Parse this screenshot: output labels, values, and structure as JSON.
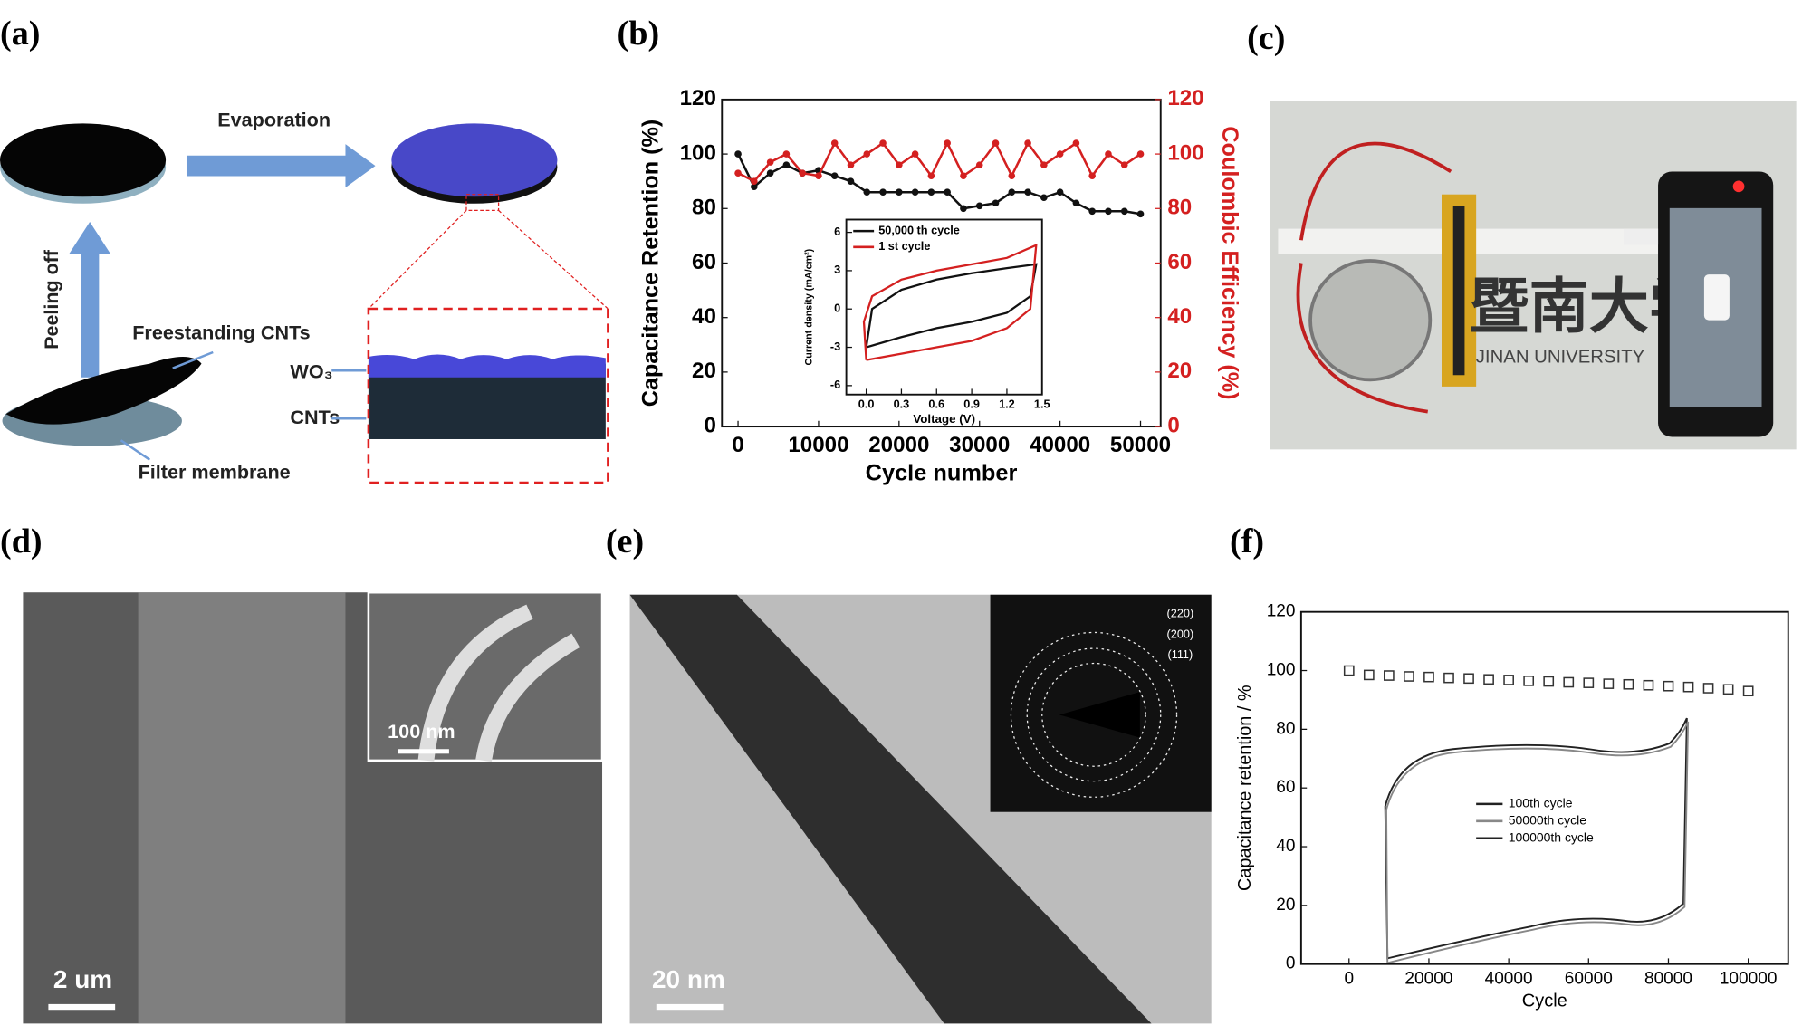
{
  "panels": {
    "labels": [
      "(a)",
      "(b)",
      "(c)",
      "(d)",
      "(e)",
      "(f)"
    ],
    "a": {
      "evaporation": "Evaporation",
      "peeling": "Peeling off",
      "freestanding": "Freestanding CNTs",
      "filter": "Filter membrane",
      "wo3": "WO₃",
      "cnts": "CNTs"
    },
    "c": {
      "chinese": "暨南大学",
      "university": "JINAN UNIVERSITY"
    },
    "d": {
      "inset_scale": "100 nm",
      "scale": "2 um"
    },
    "e": {
      "scale": "20 nm",
      "rings": [
        "(220)",
        "(200)",
        "(111)"
      ]
    },
    "f": {
      "legend": [
        "100th cycle",
        "50000th cycle",
        "100000th cycle"
      ]
    }
  },
  "chart_data": [
    {
      "type": "line",
      "xlabel": "Cycle number",
      "ylabel": "Capacitance Retention (%)",
      "y2label": "Coulombic Efficiency (%)",
      "x": [
        0,
        2000,
        4000,
        6000,
        8000,
        10000,
        12000,
        14000,
        16000,
        18000,
        20000,
        22000,
        24000,
        26000,
        28000,
        30000,
        32000,
        34000,
        36000,
        38000,
        40000,
        42000,
        44000,
        46000,
        48000,
        50000
      ],
      "series": [
        {
          "color": "#111111",
          "values": [
            100,
            88,
            93,
            96,
            93,
            94,
            92,
            90,
            86,
            86,
            86,
            86,
            86,
            86,
            80,
            81,
            82,
            86,
            86,
            84,
            86,
            82,
            79,
            79,
            79,
            78
          ]
        },
        {
          "color": "#d42020",
          "axis": "y2",
          "values": [
            93,
            90,
            97,
            100,
            93,
            92,
            104,
            96,
            100,
            104,
            96,
            100,
            92,
            104,
            92,
            96,
            104,
            92,
            104,
            96,
            100,
            104,
            92,
            100,
            96,
            100
          ]
        }
      ],
      "xlim": [
        -2000,
        52500
      ],
      "xticks": [
        0,
        10000,
        20000,
        30000,
        40000,
        50000
      ],
      "ylim": [
        0,
        120
      ],
      "yticks": [
        0,
        20,
        40,
        60,
        80,
        100,
        120
      ],
      "y2lim": [
        0,
        120
      ],
      "y2ticks": [
        0,
        20,
        40,
        60,
        80,
        100,
        120
      ],
      "marker": "circle"
    },
    {
      "type": "line",
      "xlabel": "Voltage (V)",
      "ylabel": "Current density (mA/cm²)",
      "series": [
        {
          "name": "50,000 th cycle",
          "color": "#111111",
          "x": [
            0,
            0.3,
            0.6,
            0.9,
            1.2,
            1.4,
            1.45,
            1.2,
            0.9,
            0.6,
            0.3,
            0.05,
            0
          ],
          "values": [
            -3,
            -2.2,
            -1.5,
            -1,
            -0.3,
            1,
            3.5,
            3.2,
            2.8,
            2.3,
            1.5,
            0,
            -3
          ]
        },
        {
          "name": "1 st cycle",
          "color": "#d42020",
          "x": [
            0,
            0.3,
            0.6,
            0.9,
            1.2,
            1.4,
            1.45,
            1.2,
            0.9,
            0.6,
            0.3,
            0.05,
            -0.02,
            0
          ],
          "values": [
            -4,
            -3.5,
            -3,
            -2.5,
            -1.5,
            0,
            5,
            4,
            3.5,
            3,
            2.3,
            1,
            -1,
            -4
          ]
        }
      ],
      "xlim": [
        -0.17,
        1.5
      ],
      "xticks": [
        {
          "value": 0,
          "label": "0.0"
        },
        0.3,
        0.6,
        0.9,
        1.2,
        1.5
      ],
      "ylim": [
        -6.7,
        7
      ],
      "yticks": [
        -6,
        -3,
        0,
        3,
        6
      ],
      "legend": "top-left"
    },
    {
      "type": "scatter",
      "xlabel": "Cycle",
      "ylabel": "Capacitance retention / %",
      "x": [
        0,
        5000,
        10000,
        15000,
        20000,
        25000,
        30000,
        35000,
        40000,
        45000,
        50000,
        55000,
        60000,
        65000,
        70000,
        75000,
        80000,
        85000,
        90000,
        95000,
        100000
      ],
      "series": [
        {
          "color": "#333333",
          "values": [
            100,
            98.5,
            98.3,
            98,
            97.8,
            97.5,
            97.3,
            97,
            96.8,
            96.5,
            96.3,
            96,
            95.8,
            95.5,
            95.3,
            95,
            94.7,
            94.4,
            94,
            93.6,
            93
          ]
        }
      ],
      "xlim": [
        -12000,
        110000
      ],
      "xticks": [
        0,
        20000,
        40000,
        60000,
        80000,
        100000
      ],
      "ylim": [
        0,
        120
      ],
      "yticks": [
        0,
        20,
        40,
        60,
        80,
        100,
        120
      ],
      "marker": "square"
    }
  ]
}
